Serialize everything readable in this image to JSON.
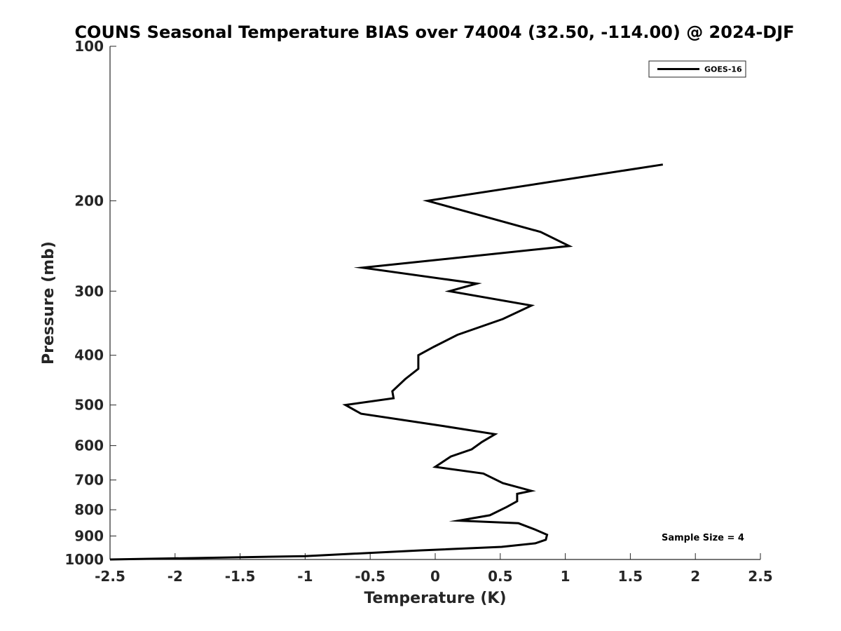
{
  "chart_data": {
    "type": "line",
    "title": "COUNS Seasonal Temperature BIAS over 74004 (32.50, -114.00) @ 2024-DJF",
    "xlabel": "Temperature (K)",
    "ylabel": "Pressure (mb)",
    "xlim": [
      -2.5,
      2.5
    ],
    "ylim": [
      100,
      1000
    ],
    "yscale": "log",
    "y_reversed": true,
    "xticks": [
      -2.5,
      -2,
      -1.5,
      -1,
      -0.5,
      0,
      0.5,
      1,
      1.5,
      2,
      2.5
    ],
    "xtick_labels": [
      "-2.5",
      "-2",
      "-1.5",
      "-1",
      "-0.5",
      "0",
      "0.5",
      "1",
      "1.5",
      "2",
      "2.5"
    ],
    "yticks": [
      100,
      200,
      300,
      400,
      500,
      600,
      700,
      800,
      900,
      1000
    ],
    "ytick_labels": [
      "100",
      "200",
      "300",
      "400",
      "500",
      "600",
      "700",
      "800",
      "900",
      "1000"
    ],
    "grid": false,
    "legend_position": "top-right",
    "series": [
      {
        "name": "GOES-16",
        "color": "#000000",
        "x": [
          1.75,
          -0.06,
          0.81,
          1.03,
          -0.56,
          0.32,
          0.11,
          0.74,
          0.52,
          0.17,
          -0.01,
          -0.13,
          -0.13,
          -0.23,
          -0.33,
          -0.32,
          -0.69,
          -0.57,
          0.07,
          0.46,
          0.36,
          0.28,
          0.12,
          0.0,
          0.37,
          0.52,
          0.74,
          0.63,
          0.63,
          0.55,
          0.42,
          0.18,
          0.64,
          0.77,
          0.86,
          0.85,
          0.77,
          0.51,
          -0.11,
          -1.0,
          -2.5
        ],
        "y": [
          170,
          200,
          230,
          245,
          270,
          290,
          300,
          320,
          340,
          365,
          385,
          400,
          425,
          445,
          470,
          485,
          500,
          520,
          550,
          570,
          590,
          610,
          630,
          660,
          680,
          710,
          735,
          745,
          770,
          790,
          820,
          840,
          850,
          875,
          895,
          915,
          930,
          945,
          960,
          985,
          1000
        ]
      }
    ],
    "annotations": [
      {
        "text": "Sample Size = 4",
        "position": "bottom-right"
      }
    ]
  }
}
